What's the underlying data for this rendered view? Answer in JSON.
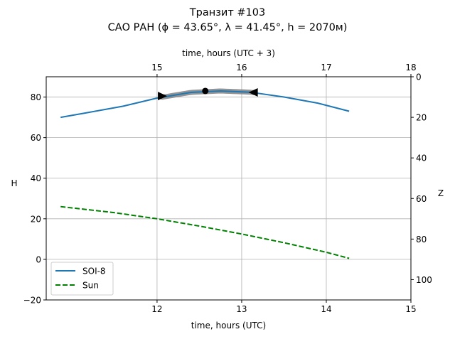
{
  "chart_data": {
    "type": "line",
    "title": "Транзит #103",
    "subtitle": "САО РАН (ϕ = 43.65°, λ = 41.45°, h = 2070м)",
    "xlabel": "time, hours (UTC)",
    "xlabel_top": "time, hours (UTC + 3)",
    "ylabel": "H",
    "ylabel_right": "Z",
    "xlim": [
      10.69,
      15
    ],
    "ylim": [
      -20,
      90
    ],
    "xticks": [
      "12",
      "13",
      "14",
      "15"
    ],
    "xtick_values": [
      12,
      13,
      14,
      15
    ],
    "xticks_top": [
      "15",
      "16",
      "17",
      "18"
    ],
    "xticks_top_values": [
      12,
      13,
      14,
      15
    ],
    "yticks": [
      "−20",
      "0",
      "20",
      "40",
      "60",
      "80"
    ],
    "ytick_values": [
      -20,
      0,
      20,
      40,
      60,
      80
    ],
    "yticks_right": [
      "0",
      "20",
      "40",
      "60",
      "80",
      "100"
    ],
    "yticks_right_values": [
      0,
      20,
      40,
      60,
      80,
      100
    ],
    "grid": true,
    "legend_position": "lower-left",
    "series": [
      {
        "name": "SOI-8",
        "style": "solid",
        "color": "#1f77b4",
        "x": [
          10.86,
          11.2,
          11.6,
          12.0,
          12.4,
          12.75,
          13.1,
          13.5,
          13.9,
          14.27
        ],
        "y": [
          70,
          72.5,
          75.5,
          79.5,
          82.3,
          83,
          82.4,
          80,
          77,
          73
        ]
      },
      {
        "name": "Sun",
        "style": "dashed",
        "color": "#008000",
        "x": [
          10.86,
          11.5,
          12.0,
          12.5,
          13.0,
          13.5,
          14.0,
          14.27
        ],
        "y": [
          26,
          23,
          20,
          16.4,
          12.5,
          8.2,
          3.5,
          0.5
        ]
      }
    ],
    "transit": {
      "start": {
        "x": 12.06,
        "y": 80.5
      },
      "peak": {
        "x": 12.57,
        "y": 83
      },
      "end": {
        "x": 13.14,
        "y": 82.3
      }
    }
  }
}
